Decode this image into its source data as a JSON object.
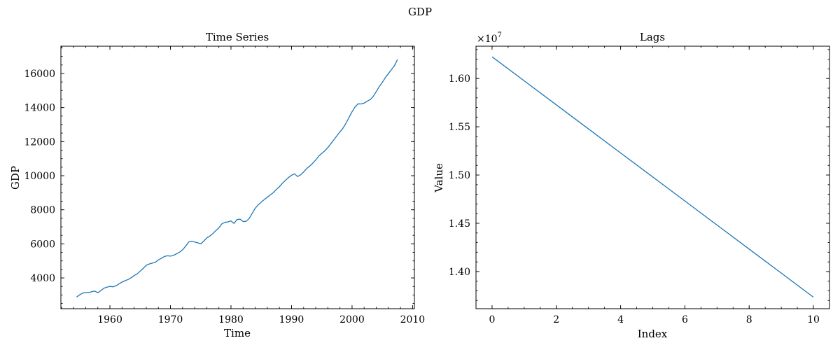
{
  "figure": {
    "title": "GDP"
  },
  "chart_data": [
    {
      "type": "line",
      "title": "Time Series",
      "xlabel": "Time",
      "ylabel": "GDP",
      "xlim": [
        1951.9,
        2010.3
      ],
      "ylim": [
        2195,
        17600
      ],
      "xticks": [
        1960,
        1970,
        1980,
        1990,
        2000,
        2010
      ],
      "yticks": [
        4000,
        6000,
        8000,
        10000,
        12000,
        14000,
        16000
      ],
      "grid": false,
      "color": "#1f77b4",
      "series": [
        {
          "x": [
            1954.5,
            1955.0,
            1955.5,
            1956.0,
            1956.5,
            1957.0,
            1957.5,
            1958.0,
            1958.5,
            1959.0,
            1959.5,
            1960.0,
            1960.5,
            1961.0,
            1961.5,
            1962.0,
            1962.5,
            1963.0,
            1963.5,
            1964.0,
            1964.5,
            1965.0,
            1965.5,
            1966.0,
            1966.5,
            1967.0,
            1967.5,
            1968.0,
            1968.5,
            1969.0,
            1969.5,
            1970.0,
            1970.5,
            1971.0,
            1971.5,
            1972.0,
            1972.5,
            1973.0,
            1973.5,
            1974.0,
            1974.5,
            1975.0,
            1975.5,
            1976.0,
            1976.5,
            1977.0,
            1977.5,
            1978.0,
            1978.5,
            1979.0,
            1979.5,
            1980.0,
            1980.5,
            1981.0,
            1981.5,
            1982.0,
            1982.5,
            1983.0,
            1983.5,
            1984.0,
            1984.5,
            1985.0,
            1985.5,
            1986.0,
            1986.5,
            1987.0,
            1987.5,
            1988.0,
            1988.5,
            1989.0,
            1989.5,
            1990.0,
            1990.5,
            1991.0,
            1991.5,
            1992.0,
            1992.5,
            1993.0,
            1993.5,
            1994.0,
            1994.5,
            1995.0,
            1995.5,
            1996.0,
            1996.5,
            1997.0,
            1997.5,
            1998.0,
            1998.5,
            1999.0,
            1999.5,
            2000.0,
            2000.5,
            2001.0,
            2001.5,
            2002.0,
            2002.5,
            2003.0,
            2003.5,
            2004.0,
            2004.5,
            2005.0,
            2005.5,
            2006.0,
            2006.5,
            2007.0,
            2007.5
          ],
          "y": [
            2880,
            3010,
            3110,
            3140,
            3150,
            3190,
            3230,
            3130,
            3260,
            3400,
            3460,
            3500,
            3480,
            3540,
            3650,
            3760,
            3840,
            3910,
            4010,
            4140,
            4240,
            4400,
            4560,
            4740,
            4820,
            4870,
            4920,
            5060,
            5150,
            5260,
            5300,
            5280,
            5320,
            5420,
            5510,
            5650,
            5860,
            6110,
            6160,
            6110,
            6060,
            6000,
            6160,
            6350,
            6460,
            6600,
            6780,
            6940,
            7180,
            7260,
            7290,
            7350,
            7200,
            7430,
            7450,
            7310,
            7320,
            7480,
            7790,
            8090,
            8290,
            8450,
            8600,
            8740,
            8870,
            9010,
            9190,
            9360,
            9560,
            9730,
            9890,
            10030,
            10110,
            9950,
            10050,
            10220,
            10420,
            10560,
            10730,
            10920,
            11150,
            11310,
            11460,
            11650,
            11880,
            12110,
            12340,
            12570,
            12790,
            13080,
            13420,
            13750,
            14040,
            14220,
            14210,
            14260,
            14370,
            14470,
            14650,
            14940,
            15230,
            15480,
            15760,
            15990,
            16220,
            16460,
            16820
          ]
        }
      ]
    },
    {
      "type": "line",
      "title": "Lags",
      "xlabel": "Index",
      "ylabel": "Value",
      "offset_text": "×10",
      "offset_exponent": "7",
      "xlim": [
        -0.5,
        10.5
      ],
      "ylim": [
        1.3615,
        1.6335
      ],
      "xticks": [
        0,
        2,
        4,
        6,
        8,
        10
      ],
      "yticks": [
        1.4,
        1.45,
        1.5,
        1.55,
        1.6
      ],
      "ytick_labels": [
        "1.40",
        "1.45",
        "1.50",
        "1.55",
        "1.60"
      ],
      "grid": false,
      "color": "#1f77b4",
      "series": [
        {
          "x": [
            0,
            1,
            2,
            3,
            4,
            5,
            6,
            7,
            8,
            9,
            10
          ],
          "y": [
            1.6225,
            1.5976,
            1.5727,
            1.5478,
            1.5229,
            1.498,
            1.4731,
            1.4482,
            1.4233,
            1.3984,
            1.3735
          ]
        }
      ]
    }
  ]
}
